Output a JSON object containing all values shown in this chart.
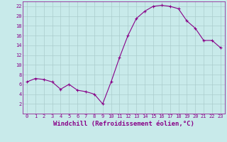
{
  "x": [
    0,
    1,
    2,
    3,
    4,
    5,
    6,
    7,
    8,
    9,
    10,
    11,
    12,
    13,
    14,
    15,
    16,
    17,
    18,
    19,
    20,
    21,
    22,
    23
  ],
  "y": [
    6.5,
    7.2,
    7.0,
    6.5,
    5.0,
    6.0,
    4.8,
    4.5,
    4.0,
    2.0,
    6.5,
    11.5,
    16.0,
    19.5,
    21.0,
    22.0,
    22.2,
    22.0,
    21.5,
    19.0,
    17.5,
    15.0,
    15.0,
    13.5
  ],
  "line_color": "#880088",
  "marker": "+",
  "marker_size": 3,
  "bg_color": "#c8eaea",
  "grid_color": "#aacccc",
  "xlabel": "Windchill (Refroidissement éolien,°C)",
  "xlabel_color": "#880088",
  "tick_color": "#880088",
  "ylim": [
    0,
    23
  ],
  "xlim": [
    -0.5,
    23.5
  ],
  "yticks": [
    2,
    4,
    6,
    8,
    10,
    12,
    14,
    16,
    18,
    20,
    22
  ],
  "xticks": [
    0,
    1,
    2,
    3,
    4,
    5,
    6,
    7,
    8,
    9,
    10,
    11,
    12,
    13,
    14,
    15,
    16,
    17,
    18,
    19,
    20,
    21,
    22,
    23
  ],
  "xtick_labels": [
    "0",
    "1",
    "2",
    "3",
    "4",
    "5",
    "6",
    "7",
    "8",
    "9",
    "10",
    "11",
    "12",
    "13",
    "14",
    "15",
    "16",
    "17",
    "18",
    "19",
    "20",
    "21",
    "22",
    "23"
  ],
  "tick_fontsize": 5,
  "xlabel_fontsize": 6.5
}
